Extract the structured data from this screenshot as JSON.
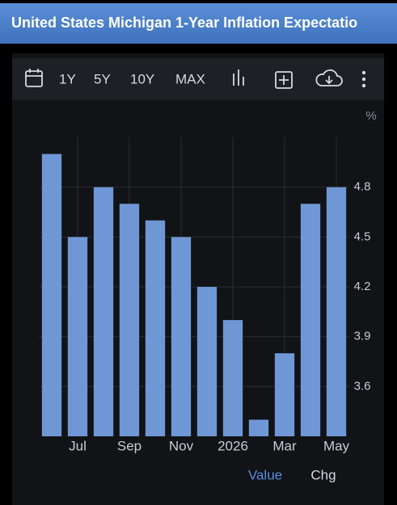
{
  "header": {
    "title": "United States Michigan 1-Year Inflation Expectatio"
  },
  "toolbar": {
    "ranges": [
      "1Y",
      "5Y",
      "10Y",
      "MAX"
    ]
  },
  "chart_data": {
    "type": "bar",
    "y_unit": "%",
    "categories": [
      null,
      "Jul",
      null,
      "Sep",
      null,
      "Nov",
      null,
      "2026",
      null,
      "Mar",
      null,
      "May"
    ],
    "series": [
      {
        "name": "Value",
        "color": "#6f97d6",
        "values": [
          5.0,
          4.5,
          4.8,
          4.7,
          4.6,
          4.5,
          4.2,
          4.0,
          3.4,
          3.8,
          4.7,
          4.8
        ]
      }
    ],
    "ylim": [
      3.3,
      5.1
    ],
    "yticks": [
      3.6,
      3.9,
      4.2,
      4.5,
      4.8
    ],
    "grid": true
  },
  "other_tab": "Chg"
}
